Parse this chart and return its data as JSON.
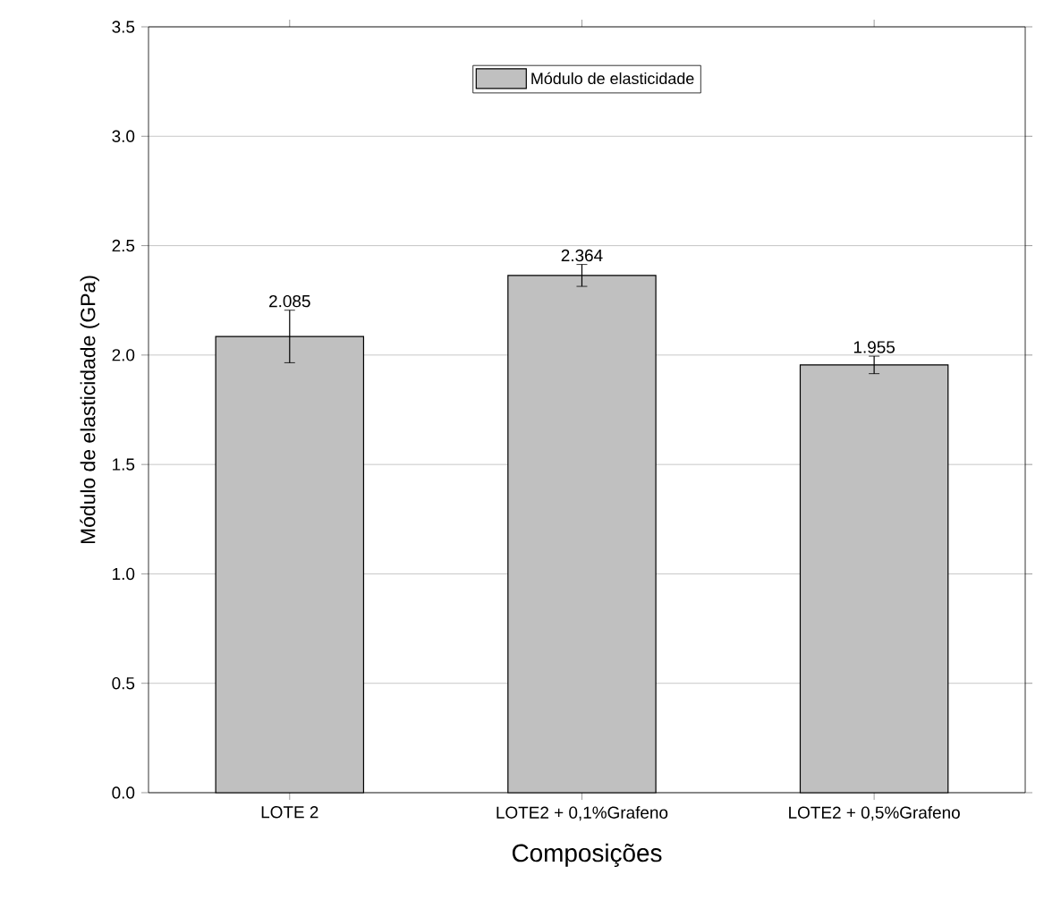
{
  "chart_data": {
    "type": "bar",
    "xlabel": "Composições",
    "ylabel": "Módulo de elasticidade (GPa)",
    "categories": [
      "LOTE 2",
      "LOTE2 + 0,1%Grafeno",
      "LOTE2 + 0,5%Grafeno"
    ],
    "series": [
      {
        "name": "Módulo de elasticidade",
        "color": "#c0c0c0",
        "values": [
          2.085,
          2.364,
          1.955
        ],
        "errors": [
          0.12,
          0.05,
          0.04
        ]
      }
    ],
    "ylim": [
      0,
      3.5
    ],
    "yticks": [
      {
        "value": 0,
        "label": "0.0"
      },
      {
        "value": 0.5,
        "label": "0.5"
      },
      {
        "value": 1,
        "label": "1.0"
      },
      {
        "value": 1.5,
        "label": "1.5"
      },
      {
        "value": 2,
        "label": "2.0"
      },
      {
        "value": 2.5,
        "label": "2.5"
      },
      {
        "value": 3,
        "label": "3.0"
      },
      {
        "value": 3.5,
        "label": "3.5"
      }
    ],
    "grid": "y",
    "legend": "top",
    "data_labels": true
  }
}
